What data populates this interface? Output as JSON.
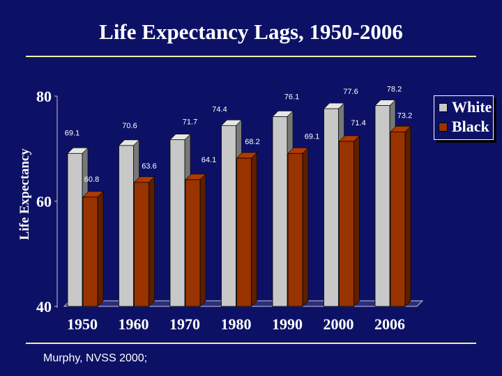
{
  "title": "Life Expectancy Lags, 1950-2006",
  "source": "Murphy, NVSS 2000;",
  "colors": {
    "background": "#0d1166",
    "rule": "#f0f0a8",
    "white_series": "#c8c8c8",
    "black_series": "#993300",
    "text": "#ffffff"
  },
  "chart_data": {
    "type": "bar",
    "title": "Life Expectancy Lags, 1950-2006",
    "xlabel": "",
    "ylabel": "Life Expectancy",
    "ylim": [
      40,
      80
    ],
    "yticks": [
      40,
      60,
      80
    ],
    "categories": [
      "1950",
      "1960",
      "1970",
      "1980",
      "1990",
      "2000",
      "2006"
    ],
    "series": [
      {
        "name": "White",
        "color": "#c8c8c8",
        "values": [
          69.1,
          70.6,
          71.7,
          74.4,
          76.1,
          77.6,
          78.2
        ]
      },
      {
        "name": "Black",
        "color": "#993300",
        "values": [
          60.8,
          63.6,
          64.1,
          68.2,
          69.1,
          71.4,
          73.2
        ]
      }
    ],
    "value_labels": {
      "White": [
        "69.1",
        "70.6",
        "71.7",
        "74.4",
        "76.1",
        "77.6",
        "78.2"
      ],
      "Black": [
        "60.8",
        "63.6",
        "64.1",
        "68.2",
        "69.1",
        "71.4",
        "73.2"
      ]
    },
    "legend": {
      "position": "right",
      "entries": [
        "White",
        "Black"
      ]
    },
    "grid": false,
    "style": "3d-bar"
  }
}
